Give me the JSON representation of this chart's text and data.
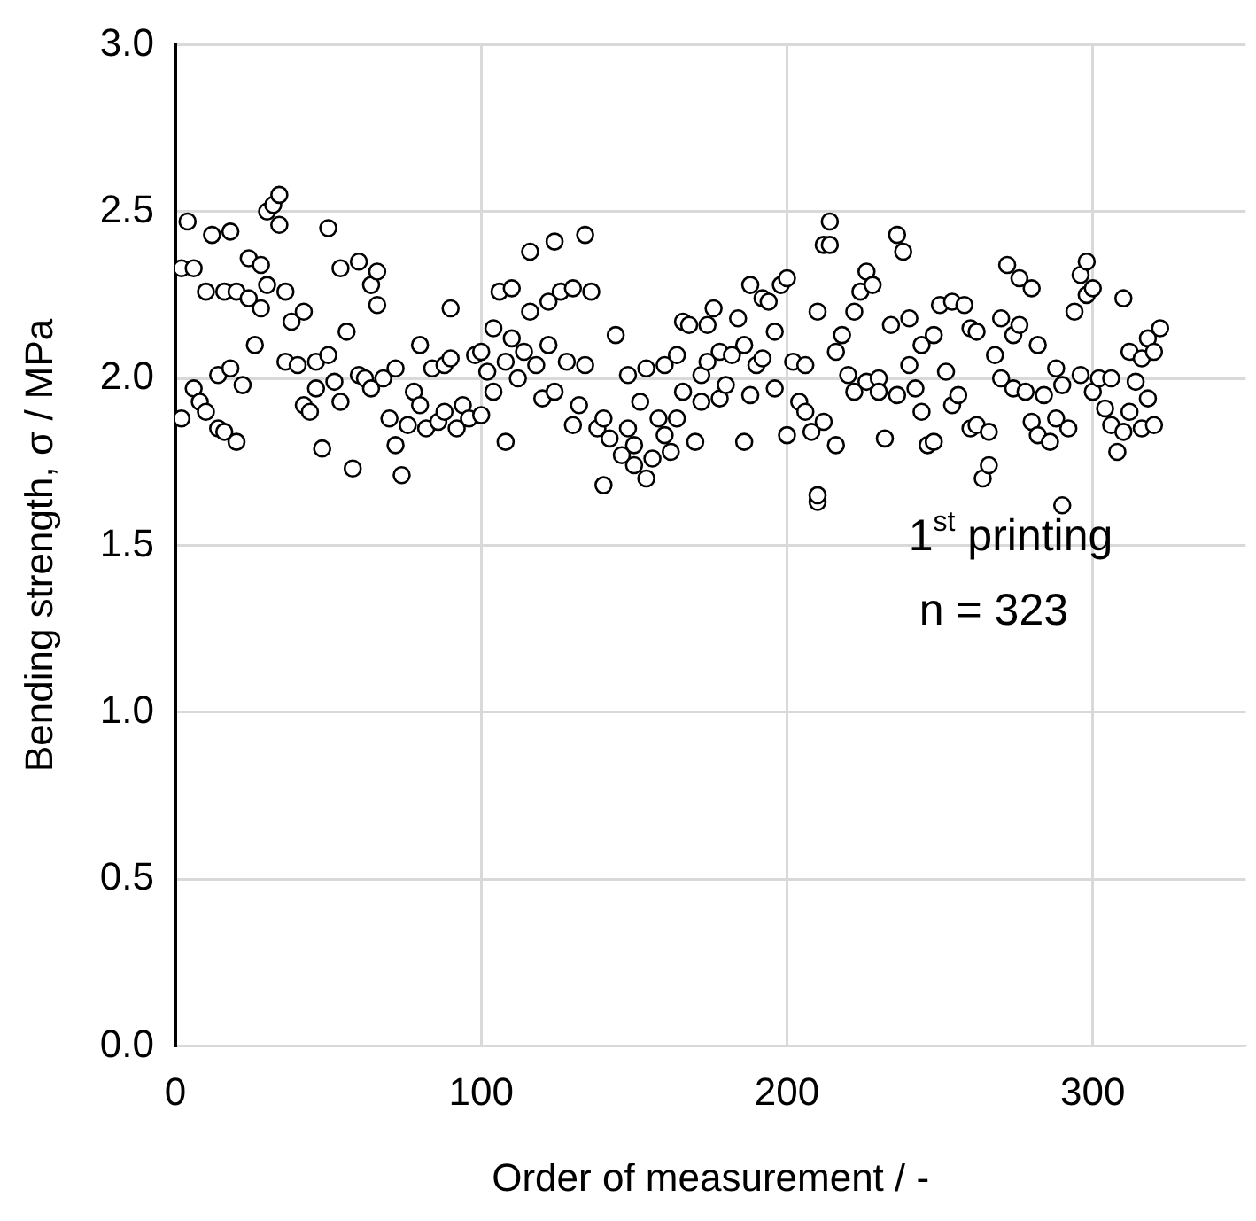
{
  "chart_data": {
    "type": "scatter",
    "xlabel": "Order of measurement / -",
    "ylabel": "Bending strength, σ / MPa",
    "annotations": [
      "1$^{st}$ printing",
      "n = 323"
    ],
    "xlim": [
      0,
      350
    ],
    "xticks": [
      0,
      100,
      200,
      300
    ],
    "ylim": [
      0,
      3
    ],
    "yticks": [
      {
        "value": 0,
        "label": "0.0"
      },
      {
        "value": 0.5,
        "label": "0.5"
      },
      {
        "value": 1,
        "label": "1.0"
      },
      {
        "value": 1.5,
        "label": "1.5"
      },
      {
        "value": 2,
        "label": "2.0"
      },
      {
        "value": 2.5,
        "label": "2.5"
      },
      {
        "value": 3,
        "label": "3.0"
      }
    ],
    "grid": true,
    "legend": false,
    "marker": "circle",
    "x": [
      2,
      2,
      4,
      6,
      6,
      8,
      10,
      10,
      12,
      14,
      14,
      16,
      16,
      18,
      18,
      20,
      20,
      22,
      24,
      24,
      26,
      28,
      28,
      30,
      30,
      32,
      34,
      34,
      36,
      36,
      38,
      40,
      42,
      42,
      44,
      46,
      46,
      48,
      50,
      50,
      52,
      54,
      54,
      56,
      58,
      60,
      60,
      62,
      64,
      64,
      66,
      66,
      68,
      70,
      72,
      72,
      74,
      76,
      78,
      80,
      80,
      82,
      84,
      86,
      88,
      88,
      90,
      90,
      92,
      94,
      96,
      98,
      100,
      100,
      102,
      104,
      104,
      106,
      108,
      108,
      110,
      110,
      112,
      114,
      116,
      116,
      118,
      120,
      122,
      122,
      124,
      124,
      126,
      128,
      130,
      130,
      132,
      134,
      134,
      136,
      138,
      140,
      140,
      142,
      144,
      146,
      148,
      148,
      150,
      150,
      152,
      154,
      154,
      156,
      158,
      160,
      160,
      162,
      164,
      164,
      166,
      166,
      168,
      170,
      172,
      172,
      174,
      174,
      176,
      178,
      178,
      180,
      182,
      184,
      186,
      186,
      188,
      188,
      190,
      192,
      192,
      194,
      196,
      196,
      198,
      200,
      200,
      202,
      204,
      206,
      206,
      208,
      210,
      210,
      210,
      212,
      212,
      214,
      214,
      216,
      216,
      218,
      220,
      222,
      222,
      224,
      226,
      226,
      228,
      230,
      230,
      232,
      234,
      236,
      236,
      238,
      240,
      240,
      242,
      244,
      244,
      246,
      248,
      248,
      250,
      252,
      254,
      254,
      256,
      258,
      260,
      260,
      262,
      262,
      264,
      266,
      266,
      268,
      270,
      270,
      272,
      274,
      274,
      276,
      276,
      278,
      280,
      280,
      282,
      282,
      284,
      286,
      288,
      288,
      290,
      290,
      292,
      294,
      296,
      296,
      298,
      298,
      300,
      300,
      302,
      304,
      306,
      306,
      308,
      310,
      310,
      312,
      312,
      314,
      316,
      316,
      318,
      318,
      320,
      320,
      322
    ],
    "values": [
      2.33,
      1.88,
      2.47,
      1.97,
      2.33,
      1.93,
      1.9,
      2.26,
      2.43,
      1.85,
      2.01,
      2.26,
      1.84,
      2.03,
      2.44,
      1.81,
      2.26,
      1.98,
      2.36,
      2.24,
      2.1,
      2.34,
      2.21,
      2.5,
      2.28,
      2.52,
      2.55,
      2.46,
      2.26,
      2.05,
      2.17,
      2.04,
      1.92,
      2.2,
      1.9,
      2.05,
      1.97,
      1.79,
      2.45,
      2.07,
      1.99,
      1.93,
      2.33,
      2.14,
      1.73,
      2.35,
      2.01,
      2,
      2.28,
      1.97,
      2.22,
      2.32,
      2,
      1.88,
      2.03,
      1.8,
      1.71,
      1.86,
      1.96,
      1.92,
      2.1,
      1.85,
      2.03,
      1.87,
      1.9,
      2.04,
      2.21,
      2.06,
      1.85,
      1.92,
      1.88,
      2.07,
      1.89,
      2.08,
      2.02,
      1.96,
      2.15,
      2.26,
      1.81,
      2.05,
      2.27,
      2.12,
      2,
      2.08,
      2.38,
      2.2,
      2.04,
      1.94,
      2.23,
      2.1,
      2.41,
      1.96,
      2.26,
      2.05,
      1.86,
      2.27,
      1.92,
      2.43,
      2.04,
      2.26,
      1.85,
      1.68,
      1.88,
      1.82,
      2.13,
      1.77,
      2.01,
      1.85,
      1.8,
      1.74,
      1.93,
      1.7,
      2.03,
      1.76,
      1.88,
      1.83,
      2.04,
      1.78,
      1.88,
      2.07,
      1.96,
      2.17,
      2.16,
      1.81,
      2.01,
      1.93,
      2.05,
      2.16,
      2.21,
      1.94,
      2.08,
      1.98,
      2.07,
      2.18,
      2.1,
      1.81,
      2.28,
      1.95,
      2.04,
      2.06,
      2.24,
      2.23,
      1.97,
      2.14,
      2.28,
      1.83,
      2.3,
      2.05,
      1.93,
      1.9,
      2.04,
      1.84,
      1.63,
      1.65,
      2.2,
      2.4,
      1.87,
      2.47,
      2.4,
      2.08,
      1.8,
      2.13,
      2.01,
      2.2,
      1.96,
      2.26,
      2.32,
      1.99,
      2.28,
      2,
      1.96,
      1.82,
      2.16,
      2.43,
      1.95,
      2.38,
      2.18,
      2.04,
      1.97,
      2.1,
      1.9,
      1.8,
      2.13,
      1.81,
      2.22,
      2.02,
      2.23,
      1.92,
      1.95,
      2.22,
      1.85,
      2.15,
      2.14,
      1.86,
      1.7,
      1.84,
      1.74,
      2.07,
      2.18,
      2,
      2.34,
      1.97,
      2.13,
      2.3,
      2.16,
      1.96,
      1.87,
      2.27,
      1.83,
      2.1,
      1.95,
      1.81,
      1.88,
      2.03,
      1.62,
      1.98,
      1.85,
      2.2,
      2.31,
      2.01,
      2.35,
      2.25,
      2.27,
      1.96,
      2,
      1.91,
      1.86,
      2,
      1.78,
      2.24,
      1.84,
      2.08,
      1.9,
      1.99,
      1.85,
      2.06,
      1.94,
      2.12,
      1.86,
      2.08,
      2.15
    ]
  }
}
